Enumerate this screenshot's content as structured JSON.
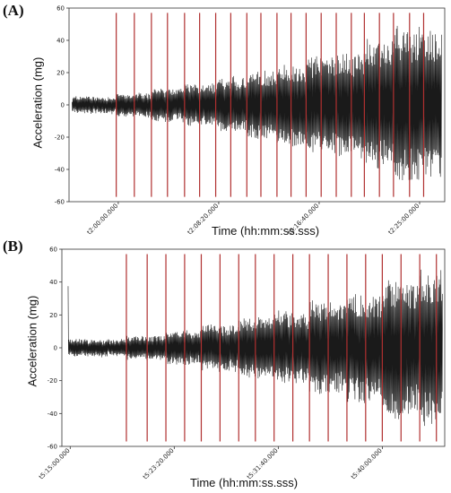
{
  "figure": {
    "panel_a_label": "(A)",
    "panel_b_label": "(B)"
  },
  "chart_data": [
    {
      "type": "line",
      "panel": "(A)",
      "ylabel": "Acceleration (mg)",
      "xlabel": "Time (hh:mm:ss.sss)",
      "ylim": [
        -60,
        60
      ],
      "yticks": [
        -60,
        -40,
        -20,
        0,
        20,
        40,
        60
      ],
      "xticks": [
        "t2:00:00.000",
        "t2:08:20.000",
        "t2:16:40.000",
        "t2:25:00.000"
      ],
      "xtick_seconds": [
        0,
        500,
        1000,
        1500
      ],
      "xlim_seconds": [
        -245,
        1625
      ],
      "signal_start_seconds": -230,
      "signal_end_seconds": 1610,
      "grid": false,
      "marker_line_color": "#b03030",
      "signal_color": "#1a1a1a",
      "marker_times_seconds": [
        -10,
        80,
        165,
        245,
        330,
        405,
        485,
        560,
        640,
        710,
        790,
        860,
        935,
        1010,
        1085,
        1160,
        1225,
        1300,
        1370,
        1450,
        1520
      ],
      "marker_line_range": [
        -57,
        57
      ],
      "segments": [
        {
          "start": -230,
          "end": -10,
          "amplitude": 5
        },
        {
          "start": -10,
          "end": 165,
          "amplitude": 7
        },
        {
          "start": 165,
          "end": 330,
          "amplitude": 10
        },
        {
          "start": 330,
          "end": 485,
          "amplitude": 13
        },
        {
          "start": 485,
          "end": 640,
          "amplitude": 17
        },
        {
          "start": 640,
          "end": 790,
          "amplitude": 21
        },
        {
          "start": 790,
          "end": 935,
          "amplitude": 25
        },
        {
          "start": 935,
          "end": 1085,
          "amplitude": 30
        },
        {
          "start": 1085,
          "end": 1225,
          "amplitude": 33
        },
        {
          "start": 1225,
          "end": 1370,
          "amplitude": 40
        },
        {
          "start": 1370,
          "end": 1610,
          "amplitude": 48
        }
      ]
    },
    {
      "type": "line",
      "panel": "(B)",
      "ylabel": "Acceleration (mg)",
      "xlabel": "Time (hh:mm:ss.sss)",
      "ylim": [
        -60,
        60
      ],
      "yticks": [
        -60,
        -40,
        -20,
        0,
        20,
        40,
        60
      ],
      "xticks": [
        "t5:15:00.000",
        "t5:23:20.000",
        "t5:31:40.000",
        "t5:40:00.000"
      ],
      "xtick_seconds": [
        0,
        500,
        1000,
        1500
      ],
      "xlim_seconds": [
        -40,
        1800
      ],
      "signal_start_seconds": -10,
      "signal_end_seconds": 1790,
      "grid": false,
      "marker_line_color": "#b03030",
      "signal_color": "#1a1a1a",
      "marker_times_seconds": [
        270,
        370,
        460,
        550,
        630,
        720,
        810,
        890,
        980,
        1070,
        1150,
        1240,
        1330,
        1420,
        1500,
        1590,
        1680,
        1760
      ],
      "marker_line_range": [
        -57,
        57
      ],
      "segments": [
        {
          "start": -10,
          "end": 270,
          "amplitude": 5
        },
        {
          "start": 270,
          "end": 460,
          "amplitude": 7
        },
        {
          "start": 460,
          "end": 630,
          "amplitude": 10
        },
        {
          "start": 630,
          "end": 810,
          "amplitude": 14
        },
        {
          "start": 810,
          "end": 980,
          "amplitude": 18
        },
        {
          "start": 980,
          "end": 1150,
          "amplitude": 22
        },
        {
          "start": 1150,
          "end": 1330,
          "amplitude": 28
        },
        {
          "start": 1330,
          "end": 1500,
          "amplitude": 33
        },
        {
          "start": 1500,
          "end": 1590,
          "amplitude": 43
        },
        {
          "start": 1590,
          "end": 1680,
          "amplitude": 40
        },
        {
          "start": 1680,
          "end": 1790,
          "amplitude": 48
        }
      ]
    }
  ]
}
